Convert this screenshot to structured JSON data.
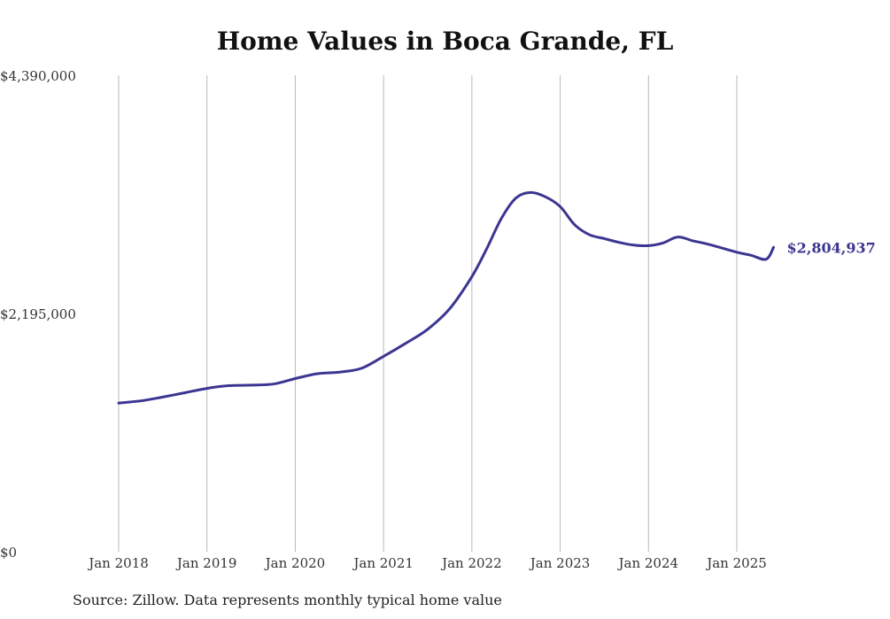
{
  "chart_data": {
    "type": "line",
    "title": "Home Values in Boca Grande, FL",
    "source": "Source: Zillow. Data represents monthly typical home value",
    "xlabel": "",
    "ylabel": "",
    "ylim": [
      0,
      4390000
    ],
    "xlim": [
      "2018-01",
      "2025-06"
    ],
    "y_ticks": [
      {
        "value": 0,
        "label": "$0"
      },
      {
        "value": 2195000,
        "label": "$2,195,000"
      },
      {
        "value": 4390000,
        "label": "$4,390,000"
      }
    ],
    "x_ticks": [
      {
        "date": "2018-01",
        "label": "Jan 2018"
      },
      {
        "date": "2019-01",
        "label": "Jan 2019"
      },
      {
        "date": "2020-01",
        "label": "Jan 2020"
      },
      {
        "date": "2021-01",
        "label": "Jan 2021"
      },
      {
        "date": "2022-01",
        "label": "Jan 2022"
      },
      {
        "date": "2023-01",
        "label": "Jan 2023"
      },
      {
        "date": "2024-01",
        "label": "Jan 2024"
      },
      {
        "date": "2025-01",
        "label": "Jan 2025"
      }
    ],
    "vertical_grid": true,
    "horizontal_grid": false,
    "line_color": "#3c3591",
    "end_label": "$2,804,937",
    "series": [
      {
        "points": [
          [
            "2018-01",
            1370000
          ],
          [
            "2018-04",
            1390000
          ],
          [
            "2018-07",
            1425000
          ],
          [
            "2018-10",
            1465000
          ],
          [
            "2019-01",
            1505000
          ],
          [
            "2019-04",
            1530000
          ],
          [
            "2019-07",
            1535000
          ],
          [
            "2019-10",
            1545000
          ],
          [
            "2020-01",
            1595000
          ],
          [
            "2020-04",
            1640000
          ],
          [
            "2020-07",
            1655000
          ],
          [
            "2020-10",
            1690000
          ],
          [
            "2021-01",
            1800000
          ],
          [
            "2021-04",
            1920000
          ],
          [
            "2021-07",
            2050000
          ],
          [
            "2021-10",
            2240000
          ],
          [
            "2022-01",
            2535000
          ],
          [
            "2022-03",
            2790000
          ],
          [
            "2022-05",
            3070000
          ],
          [
            "2022-07",
            3260000
          ],
          [
            "2022-09",
            3310000
          ],
          [
            "2022-11",
            3270000
          ],
          [
            "2023-01",
            3180000
          ],
          [
            "2023-03",
            3010000
          ],
          [
            "2023-05",
            2920000
          ],
          [
            "2023-07",
            2885000
          ],
          [
            "2023-09",
            2850000
          ],
          [
            "2023-11",
            2825000
          ],
          [
            "2024-01",
            2820000
          ],
          [
            "2024-03",
            2845000
          ],
          [
            "2024-05",
            2900000
          ],
          [
            "2024-07",
            2865000
          ],
          [
            "2024-09",
            2835000
          ],
          [
            "2025-01",
            2760000
          ],
          [
            "2025-03",
            2730000
          ],
          [
            "2025-05",
            2695000
          ],
          [
            "2025-06",
            2804937
          ]
        ]
      }
    ]
  }
}
